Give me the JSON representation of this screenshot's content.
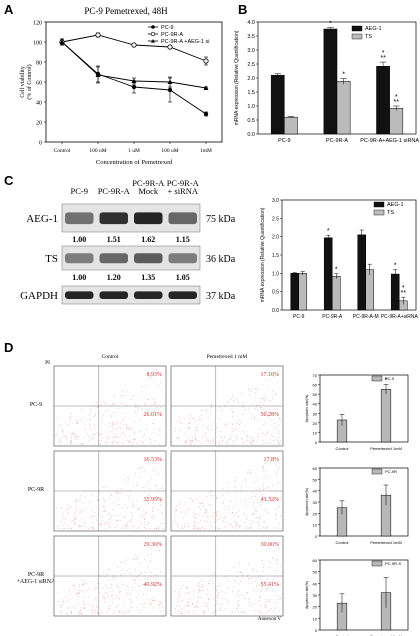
{
  "panel_letters": {
    "A": "A",
    "B": "B",
    "C": "C",
    "D": "D"
  },
  "chart_data": [
    {
      "id": "A",
      "type": "line",
      "title": "PC-9 Pemetrexed, 48H",
      "xlabel": "Concentration of Pemetrexed",
      "ylabel": "Cell viability\n(% of Control)",
      "categories": [
        "Control",
        "100 nM",
        "1 uM",
        "100 uM",
        "1mM"
      ],
      "ylim": [
        0,
        120
      ],
      "yticks": [
        0,
        20,
        40,
        60,
        80,
        100,
        120
      ],
      "series": [
        {
          "name": "PC-9",
          "marker": "filled-circle",
          "values": [
            100,
            68,
            55,
            52,
            28
          ],
          "err": [
            3,
            8,
            6,
            12,
            2
          ]
        },
        {
          "name": "PC-9R-A",
          "marker": "open-circle",
          "values": [
            100,
            107,
            97,
            95,
            81
          ],
          "err": [
            3,
            2,
            1,
            1,
            4
          ]
        },
        {
          "name": "PC-9R-A +AEG-1 si",
          "marker": "filled-triangle",
          "values": [
            100,
            67,
            61,
            60,
            54
          ],
          "err": [
            3,
            8,
            3,
            5,
            1
          ]
        }
      ]
    },
    {
      "id": "B",
      "type": "bar",
      "ylabel": "mRNA expression (Relative Quantification)",
      "categories": [
        "PC-9",
        "PC-9R-A",
        "PC-9R-A+AEG-1 siRNA"
      ],
      "ylim": [
        0,
        4.0
      ],
      "yticks": [
        0,
        0.5,
        1.0,
        1.5,
        2.0,
        2.5,
        3.0,
        3.5,
        4.0
      ],
      "series": [
        {
          "name": "AEG-1",
          "color": "#111111",
          "values": [
            2.1,
            3.75,
            2.42
          ],
          "err": [
            0.05,
            0.05,
            0.15
          ]
        },
        {
          "name": "TS",
          "color": "#bbbbbb",
          "values": [
            0.6,
            1.88,
            0.92
          ],
          "err": [
            0.03,
            0.1,
            0.08
          ]
        }
      ],
      "annotations": [
        {
          "cat": 1,
          "series": 0,
          "text": "*"
        },
        {
          "cat": 1,
          "series": 1,
          "text": "*"
        },
        {
          "cat": 2,
          "series": 0,
          "text": "*\n**"
        },
        {
          "cat": 2,
          "series": 1,
          "text": "*\n**"
        }
      ]
    },
    {
      "id": "C-bar",
      "type": "bar",
      "ylabel": "mRNA expression (Relative Quantification)",
      "categories": [
        "PC-9",
        "PC-9R-A",
        "PC-9R-A-M",
        "PC-9R-A+siRNA"
      ],
      "ylim": [
        0,
        3.0
      ],
      "yticks": [
        0.0,
        0.5,
        1.0,
        1.5,
        2.0,
        2.5,
        3.0
      ],
      "series": [
        {
          "name": "AEG-1",
          "color": "#111111",
          "values": [
            1.0,
            1.97,
            2.05,
            0.98
          ],
          "err": [
            0.02,
            0.07,
            0.13,
            0.12
          ]
        },
        {
          "name": "TS",
          "color": "#bbbbbb",
          "values": [
            1.0,
            0.92,
            1.1,
            0.25
          ],
          "err": [
            0.05,
            0.07,
            0.15,
            0.1
          ]
        }
      ],
      "annotations": [
        {
          "cat": 1,
          "series": 0,
          "text": "*"
        },
        {
          "cat": 1,
          "series": 1,
          "text": "*"
        },
        {
          "cat": 3,
          "series": 0,
          "text": "*"
        },
        {
          "cat": 3,
          "series": 1,
          "text": "*\n**"
        }
      ]
    },
    {
      "id": "D1",
      "type": "bar",
      "legend": "PC-9",
      "ylabel": "Apoptosis rate(%)",
      "categories": [
        "Control",
        "Pemetrexed 1mM"
      ],
      "ylim": [
        0,
        70
      ],
      "yticks": [
        0,
        10,
        20,
        30,
        40,
        50,
        60,
        70
      ],
      "series": [
        {
          "name": "PC-9",
          "color": "#b8b8b8",
          "values": [
            23,
            55
          ],
          "err": [
            6,
            5
          ]
        }
      ],
      "annotations": [
        {
          "cat": 1,
          "series": 0,
          "text": "*"
        }
      ]
    },
    {
      "id": "D2",
      "type": "bar",
      "legend": "PC-9R",
      "ylabel": "Apoptosis rate(%)",
      "categories": [
        "Control",
        "Pemetrexed 1mM"
      ],
      "ylim": [
        0,
        60
      ],
      "yticks": [
        0,
        10,
        20,
        30,
        40,
        50,
        60
      ],
      "series": [
        {
          "name": "PC-9R",
          "color": "#b8b8b8",
          "values": [
            25,
            36
          ],
          "err": [
            6,
            9
          ]
        }
      ]
    },
    {
      "id": "D3",
      "type": "bar",
      "legend": "PC-9R-S",
      "ylabel": "Apoptosis rate(%)",
      "categories": [
        "Control",
        "Pemetrexed 1mM"
      ],
      "ylim": [
        0,
        60
      ],
      "yticks": [
        0,
        10,
        20,
        30,
        40,
        50,
        60
      ],
      "series": [
        {
          "name": "PC-9R-S",
          "color": "#b8b8b8",
          "values": [
            23,
            32
          ],
          "err": [
            8,
            13
          ]
        }
      ]
    }
  ],
  "western_blot": {
    "lanes": [
      "PC-9",
      "PC-9R-A",
      "PC-9R-A\nMock",
      "PC-9R-A\n+ siRNA"
    ],
    "rows": [
      {
        "label": "AEG-1",
        "kda": "75 kDa",
        "values": [
          "1.00",
          "1.51",
          "1.62",
          "1.15"
        ],
        "intensity": [
          0.55,
          0.85,
          0.9,
          0.6
        ]
      },
      {
        "label": "TS",
        "kda": "36 kDa",
        "values": [
          "1.00",
          "1.20",
          "1.35",
          "1.05"
        ],
        "intensity": [
          0.5,
          0.6,
          0.65,
          0.5
        ]
      },
      {
        "label": "GAPDH",
        "kda": "37 kDa",
        "values": [],
        "intensity": [
          0.9,
          0.9,
          0.9,
          0.9
        ]
      }
    ]
  },
  "flow": {
    "col_headers": [
      "Control",
      "Pemetrexed 1 mM"
    ],
    "row_labels": [
      "PC-9",
      "PC-9R",
      "PC-9R\n+AEG-1 siRNA"
    ],
    "axis_y": "PI",
    "axis_x": "Annexon V",
    "quadrants": [
      [
        [
          "8.93%",
          "26.01%"
        ],
        [
          "17.10%",
          "50.28%"
        ]
      ],
      [
        [
          "16.53%",
          "35.95%"
        ],
        [
          "17.8%",
          "43.32%"
        ]
      ],
      [
        [
          "29.36%",
          "40.92%"
        ],
        [
          "30.06%",
          "55.41%"
        ]
      ]
    ]
  }
}
